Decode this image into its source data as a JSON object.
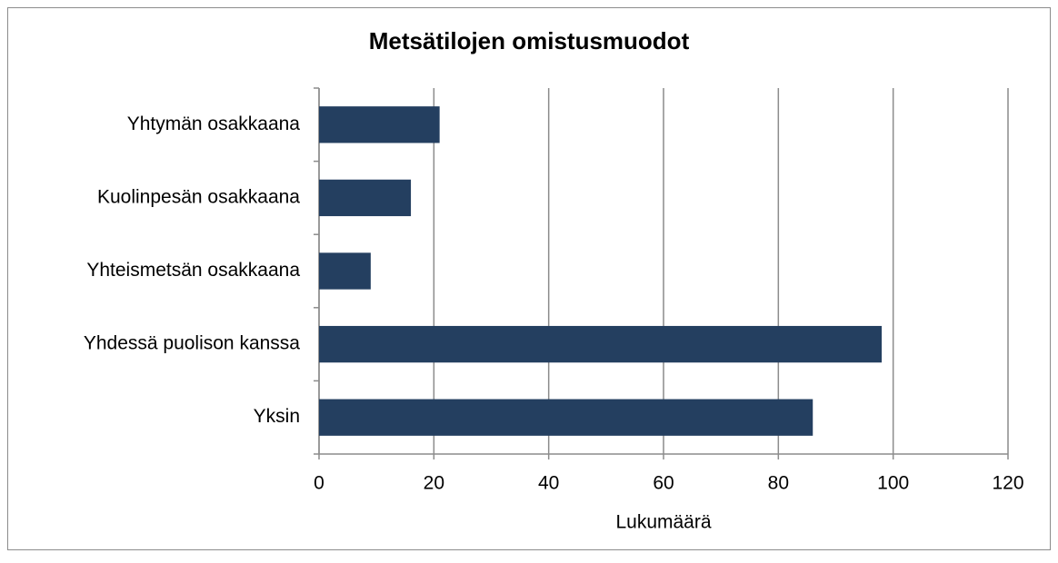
{
  "chart_data": {
    "type": "bar",
    "orientation": "horizontal",
    "title": "Metsätilojen omistusmuodot",
    "x_label": "Lukumäärä",
    "categories": [
      "Yhtymän osakkaana",
      "Kuolinpesän osakkaana",
      "Yhteismetsän osakkaana",
      "Yhdessä puolison kanssa",
      "Yksin"
    ],
    "values": [
      21,
      16,
      9,
      98,
      86
    ],
    "color": "#243f60",
    "xlim": [
      0,
      120
    ],
    "xticks": [
      0,
      20,
      40,
      60,
      80,
      100,
      120
    ],
    "grid": true
  }
}
